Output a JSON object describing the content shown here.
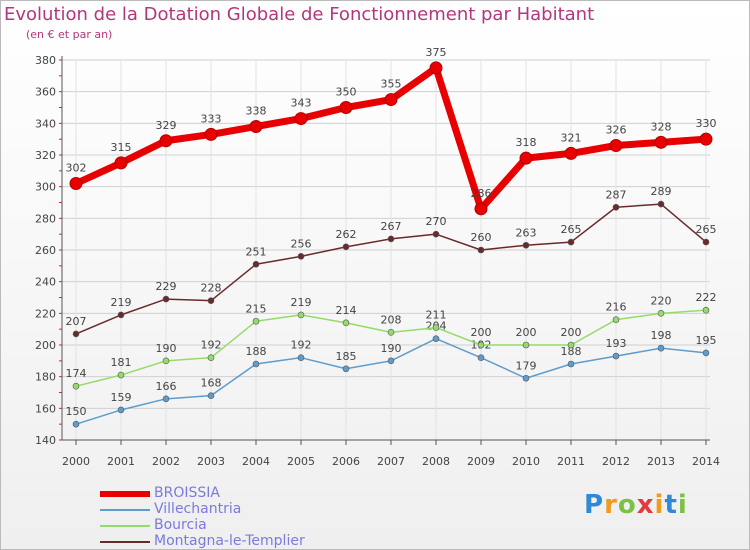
{
  "header": {
    "title": "Evolution de la Dotation Globale de Fonctionnement par Habitant",
    "subtitle": "(en € et par an)"
  },
  "logo_text": "Proxiti",
  "chart_data": {
    "type": "line",
    "x": [
      2000,
      2001,
      2002,
      2003,
      2004,
      2005,
      2006,
      2007,
      2008,
      2009,
      2010,
      2011,
      2012,
      2013,
      2014
    ],
    "ylim": [
      140,
      380
    ],
    "yticks": [
      140,
      160,
      180,
      200,
      220,
      240,
      260,
      280,
      300,
      320,
      340,
      360,
      380
    ],
    "grid": true,
    "legend_position": "bottom-left",
    "series": [
      {
        "name": "BROISSIA",
        "color": "#e80000",
        "values": [
          302,
          315,
          329,
          333,
          338,
          343,
          350,
          355,
          375,
          286,
          318,
          321,
          326,
          328,
          330
        ]
      },
      {
        "name": "Villechantria",
        "color": "#5e9ccc",
        "values": [
          150,
          159,
          166,
          168,
          188,
          192,
          185,
          190,
          204,
          192,
          179,
          188,
          193,
          198,
          195
        ]
      },
      {
        "name": "Bourcia",
        "color": "#94dc6a",
        "values": [
          174,
          181,
          190,
          192,
          215,
          219,
          214,
          208,
          211,
          200,
          200,
          200,
          216,
          220,
          222
        ]
      },
      {
        "name": "Montagna-le-Templier",
        "color": "#6b2a2a",
        "values": [
          207,
          219,
          229,
          228,
          251,
          256,
          262,
          267,
          270,
          260,
          263,
          265,
          287,
          289,
          265
        ]
      }
    ]
  }
}
